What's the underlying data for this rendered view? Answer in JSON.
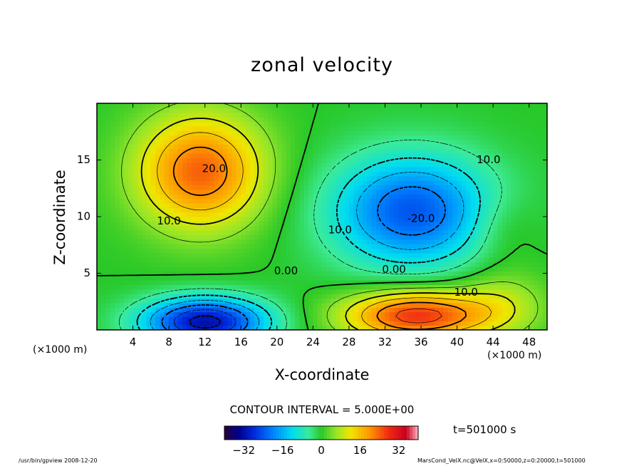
{
  "chart_data": {
    "type": "heatmap",
    "title": "zonal velocity",
    "xlabel": "X-coordinate",
    "ylabel": "Z-coordinate",
    "x_unit_label": "(×1000 m)",
    "xlim": [
      0,
      50
    ],
    "ylim": [
      0,
      20
    ],
    "x_ticks": [
      4,
      8,
      12,
      16,
      20,
      24,
      28,
      32,
      36,
      40,
      44,
      48
    ],
    "y_ticks": [
      5,
      10,
      15
    ],
    "contour_interval_text": "CONTOUR INTERVAL = 5.000E+00",
    "contour_labels": [
      {
        "text": "20.0",
        "x": 13.0,
        "z": 14.2
      },
      {
        "text": "10.0",
        "x": 8.0,
        "z": 9.6
      },
      {
        "text": "0.00",
        "x": 21.0,
        "z": 5.2
      },
      {
        "text": "0.00",
        "x": 33.0,
        "z": 5.3
      },
      {
        "text": "10.0",
        "x": 41.0,
        "z": 3.3
      },
      {
        "text": "-20.0",
        "x": 36.0,
        "z": 9.8
      },
      {
        "text": "10.0",
        "x": 27.0,
        "z": 8.8
      },
      {
        "text": "10.0",
        "x": 43.5,
        "z": 15.0
      }
    ],
    "extrema": [
      {
        "type": "max",
        "x": 11.5,
        "z": 14.0,
        "value": 24
      },
      {
        "type": "min",
        "x": 35.0,
        "z": 10.5,
        "value": -24
      },
      {
        "type": "min",
        "x": 12.0,
        "z": 0.7,
        "value": -32
      },
      {
        "type": "max",
        "x": 35.5,
        "z": 1.3,
        "value": 28
      }
    ],
    "colorbar": {
      "min": -40,
      "max": 40,
      "tick_values": [
        -32,
        -16,
        0,
        16,
        32
      ],
      "tick_labels": [
        "−32",
        "−16",
        "0",
        "16",
        "32"
      ]
    },
    "time_label": "t=501000 s"
  },
  "footer": {
    "left": "/usr/bin/gpview  2008-12-20",
    "right": "MarsCond_VelX.nc@VelX,x=0:50000,z=0:20000,t=501000"
  }
}
